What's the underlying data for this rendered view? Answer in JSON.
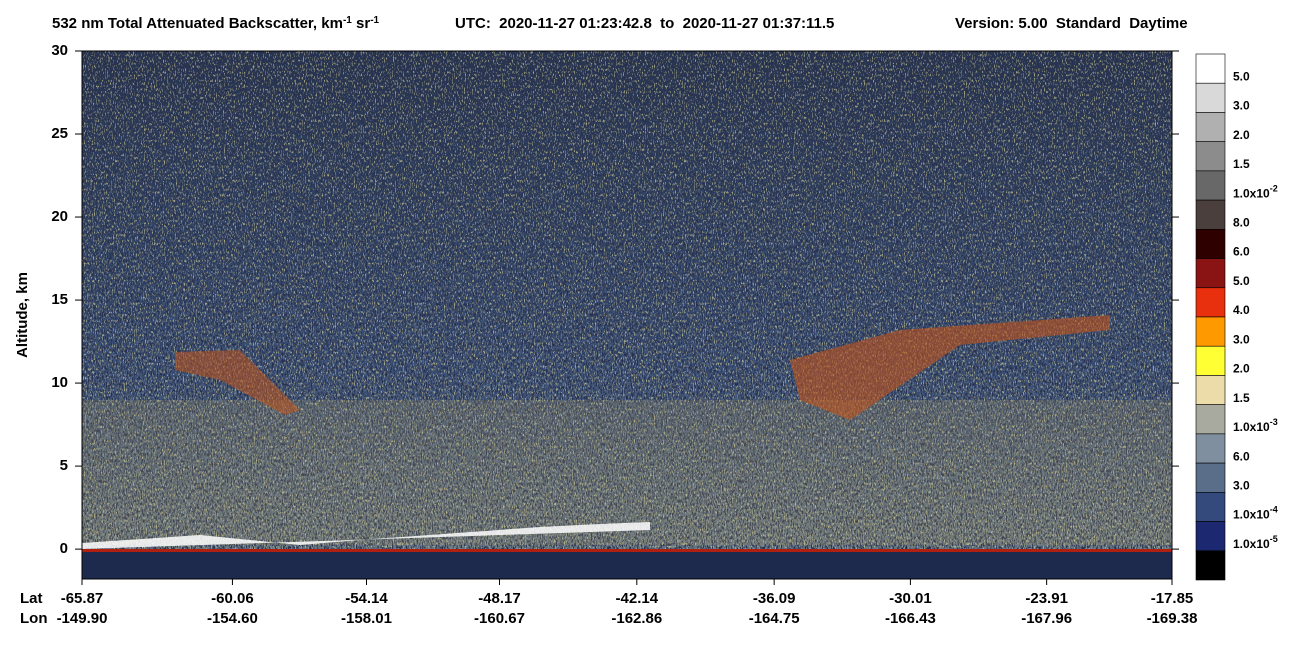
{
  "chart_data": {
    "type": "heatmap",
    "title": {
      "parts": [
        {
          "text": "532 nm Total Attenuated Backscatter, km"
        },
        {
          "text": "-1",
          "sup": true
        },
        {
          "text": " sr"
        },
        {
          "text": "-1",
          "sup": true
        }
      ]
    },
    "subtitle": "UTC:  2020-11-27 01:23:42.8  to  2020-11-27 01:37:11.5",
    "version": "Version: 5.00  Standard  Daytime",
    "y_label": "Altitude, km",
    "ylim": [
      -1.8,
      30
    ],
    "yticks": [
      0,
      5,
      10,
      15,
      20,
      25,
      30
    ],
    "x_row_labels": [
      "Lat",
      "Lon"
    ],
    "lat": [
      "-65.87",
      "-60.06",
      "-54.14",
      "-48.17",
      "-42.14",
      "-36.09",
      "-30.01",
      "-23.91",
      "-17.85"
    ],
    "lon": [
      "-149.90",
      "-154.60",
      "-158.01",
      "-160.67",
      "-162.86",
      "-164.75",
      "-166.43",
      "-167.96",
      "-169.38"
    ],
    "colorbar": {
      "colors": [
        "#ffffff",
        "#d9d9d9",
        "#b0b0b0",
        "#8c8c8c",
        "#686868",
        "#4a3f3c",
        "#2e0000",
        "#8a1414",
        "#e8300e",
        "#ff9900",
        "#ffff33",
        "#ecdcaa",
        "#a9aa9f",
        "#7f8f9f",
        "#5a6e8a",
        "#344a7c",
        "#1c2870",
        "#000000"
      ],
      "labels": [
        {
          "text": "5.0"
        },
        {
          "text": "3.0"
        },
        {
          "text": "2.0"
        },
        {
          "text": "1.5"
        },
        {
          "text": "1.0x10",
          "sup": "-2"
        },
        {
          "text": "8.0"
        },
        {
          "text": "6.0"
        },
        {
          "text": "5.0"
        },
        {
          "text": "4.0"
        },
        {
          "text": "3.0"
        },
        {
          "text": "2.0"
        },
        {
          "text": "1.5"
        },
        {
          "text": "1.0x10",
          "sup": "-3"
        },
        {
          "text": "6.0"
        },
        {
          "text": "3.0"
        },
        {
          "text": "1.0x10",
          "sup": "-4"
        },
        {
          "text": "1.0x10",
          "sup": "-5"
        }
      ]
    }
  }
}
